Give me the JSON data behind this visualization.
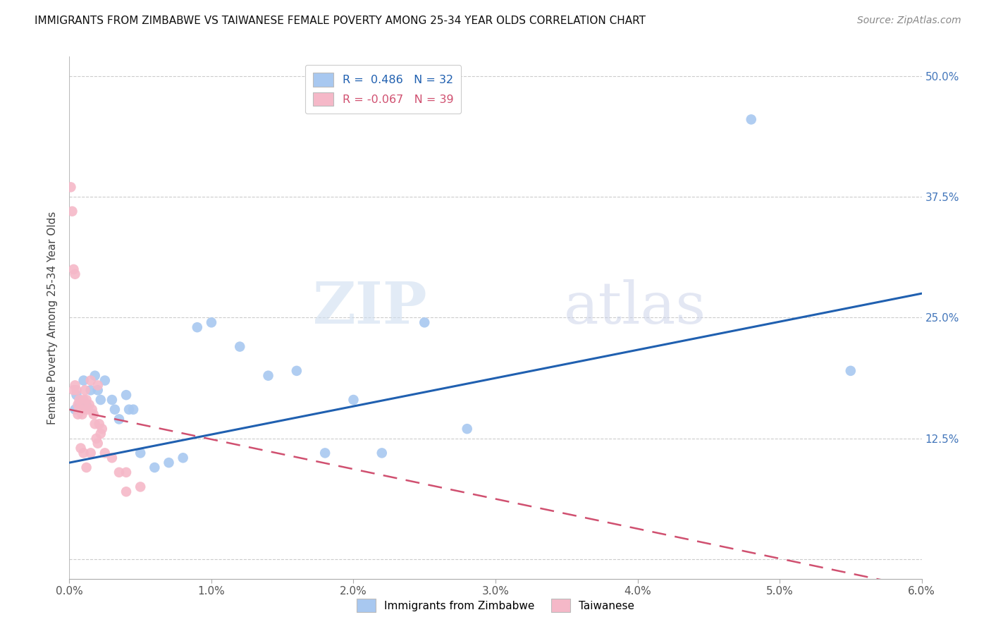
{
  "title": "IMMIGRANTS FROM ZIMBABWE VS TAIWANESE FEMALE POVERTY AMONG 25-34 YEAR OLDS CORRELATION CHART",
  "source": "Source: ZipAtlas.com",
  "ylabel": "Female Poverty Among 25-34 Year Olds",
  "ytick_labels": [
    "",
    "12.5%",
    "25.0%",
    "37.5%",
    "50.0%"
  ],
  "ytick_values": [
    0,
    0.125,
    0.25,
    0.375,
    0.5
  ],
  "xtick_values": [
    0.0,
    0.01,
    0.02,
    0.03,
    0.04,
    0.05,
    0.06
  ],
  "xtick_labels": [
    "0.0%",
    "1.0%",
    "2.0%",
    "3.0%",
    "4.0%",
    "5.0%",
    "6.0%"
  ],
  "xlim": [
    0.0,
    0.06
  ],
  "ylim": [
    -0.02,
    0.52
  ],
  "legend_blue_label": "Immigrants from Zimbabwe",
  "legend_pink_label": "Taiwanese",
  "R_blue": 0.486,
  "N_blue": 32,
  "R_pink": -0.067,
  "N_pink": 39,
  "blue_color": "#a8c8f0",
  "pink_color": "#f5b8c8",
  "blue_line_color": "#2060b0",
  "pink_line_color": "#d05070",
  "watermark_zip": "ZIP",
  "watermark_atlas": "atlas",
  "blue_line_x0": 0.0,
  "blue_line_y0": 0.1,
  "blue_line_x1": 0.06,
  "blue_line_y1": 0.275,
  "pink_line_x0": 0.0,
  "pink_line_y0": 0.155,
  "pink_line_x1": 0.06,
  "pink_line_y1": -0.03,
  "blue_dots": [
    [
      0.0004,
      0.155
    ],
    [
      0.0005,
      0.17
    ],
    [
      0.0007,
      0.16
    ],
    [
      0.001,
      0.185
    ],
    [
      0.0012,
      0.16
    ],
    [
      0.0015,
      0.175
    ],
    [
      0.0018,
      0.19
    ],
    [
      0.002,
      0.175
    ],
    [
      0.0022,
      0.165
    ],
    [
      0.0025,
      0.185
    ],
    [
      0.003,
      0.165
    ],
    [
      0.0032,
      0.155
    ],
    [
      0.0035,
      0.145
    ],
    [
      0.004,
      0.17
    ],
    [
      0.0042,
      0.155
    ],
    [
      0.0045,
      0.155
    ],
    [
      0.005,
      0.11
    ],
    [
      0.006,
      0.095
    ],
    [
      0.007,
      0.1
    ],
    [
      0.008,
      0.105
    ],
    [
      0.009,
      0.24
    ],
    [
      0.01,
      0.245
    ],
    [
      0.012,
      0.22
    ],
    [
      0.014,
      0.19
    ],
    [
      0.016,
      0.195
    ],
    [
      0.018,
      0.11
    ],
    [
      0.02,
      0.165
    ],
    [
      0.022,
      0.11
    ],
    [
      0.025,
      0.245
    ],
    [
      0.028,
      0.135
    ],
    [
      0.048,
      0.455
    ],
    [
      0.055,
      0.195
    ]
  ],
  "pink_dots": [
    [
      0.0001,
      0.385
    ],
    [
      0.0002,
      0.36
    ],
    [
      0.0003,
      0.3
    ],
    [
      0.0004,
      0.295
    ],
    [
      0.0005,
      0.175
    ],
    [
      0.0006,
      0.16
    ],
    [
      0.0007,
      0.165
    ],
    [
      0.0007,
      0.155
    ],
    [
      0.0008,
      0.155
    ],
    [
      0.0009,
      0.15
    ],
    [
      0.001,
      0.165
    ],
    [
      0.001,
      0.155
    ],
    [
      0.0011,
      0.175
    ],
    [
      0.0012,
      0.165
    ],
    [
      0.0013,
      0.155
    ],
    [
      0.0014,
      0.16
    ],
    [
      0.0015,
      0.185
    ],
    [
      0.0016,
      0.155
    ],
    [
      0.0017,
      0.15
    ],
    [
      0.0018,
      0.14
    ],
    [
      0.0019,
      0.125
    ],
    [
      0.002,
      0.12
    ],
    [
      0.0021,
      0.14
    ],
    [
      0.0022,
      0.13
    ],
    [
      0.0023,
      0.135
    ],
    [
      0.0025,
      0.11
    ],
    [
      0.003,
      0.105
    ],
    [
      0.0035,
      0.09
    ],
    [
      0.004,
      0.09
    ],
    [
      0.004,
      0.07
    ],
    [
      0.005,
      0.075
    ],
    [
      0.0004,
      0.18
    ],
    [
      0.0006,
      0.15
    ],
    [
      0.0008,
      0.115
    ],
    [
      0.001,
      0.11
    ],
    [
      0.0015,
      0.11
    ],
    [
      0.002,
      0.18
    ],
    [
      0.0012,
      0.095
    ],
    [
      0.0003,
      0.175
    ]
  ]
}
